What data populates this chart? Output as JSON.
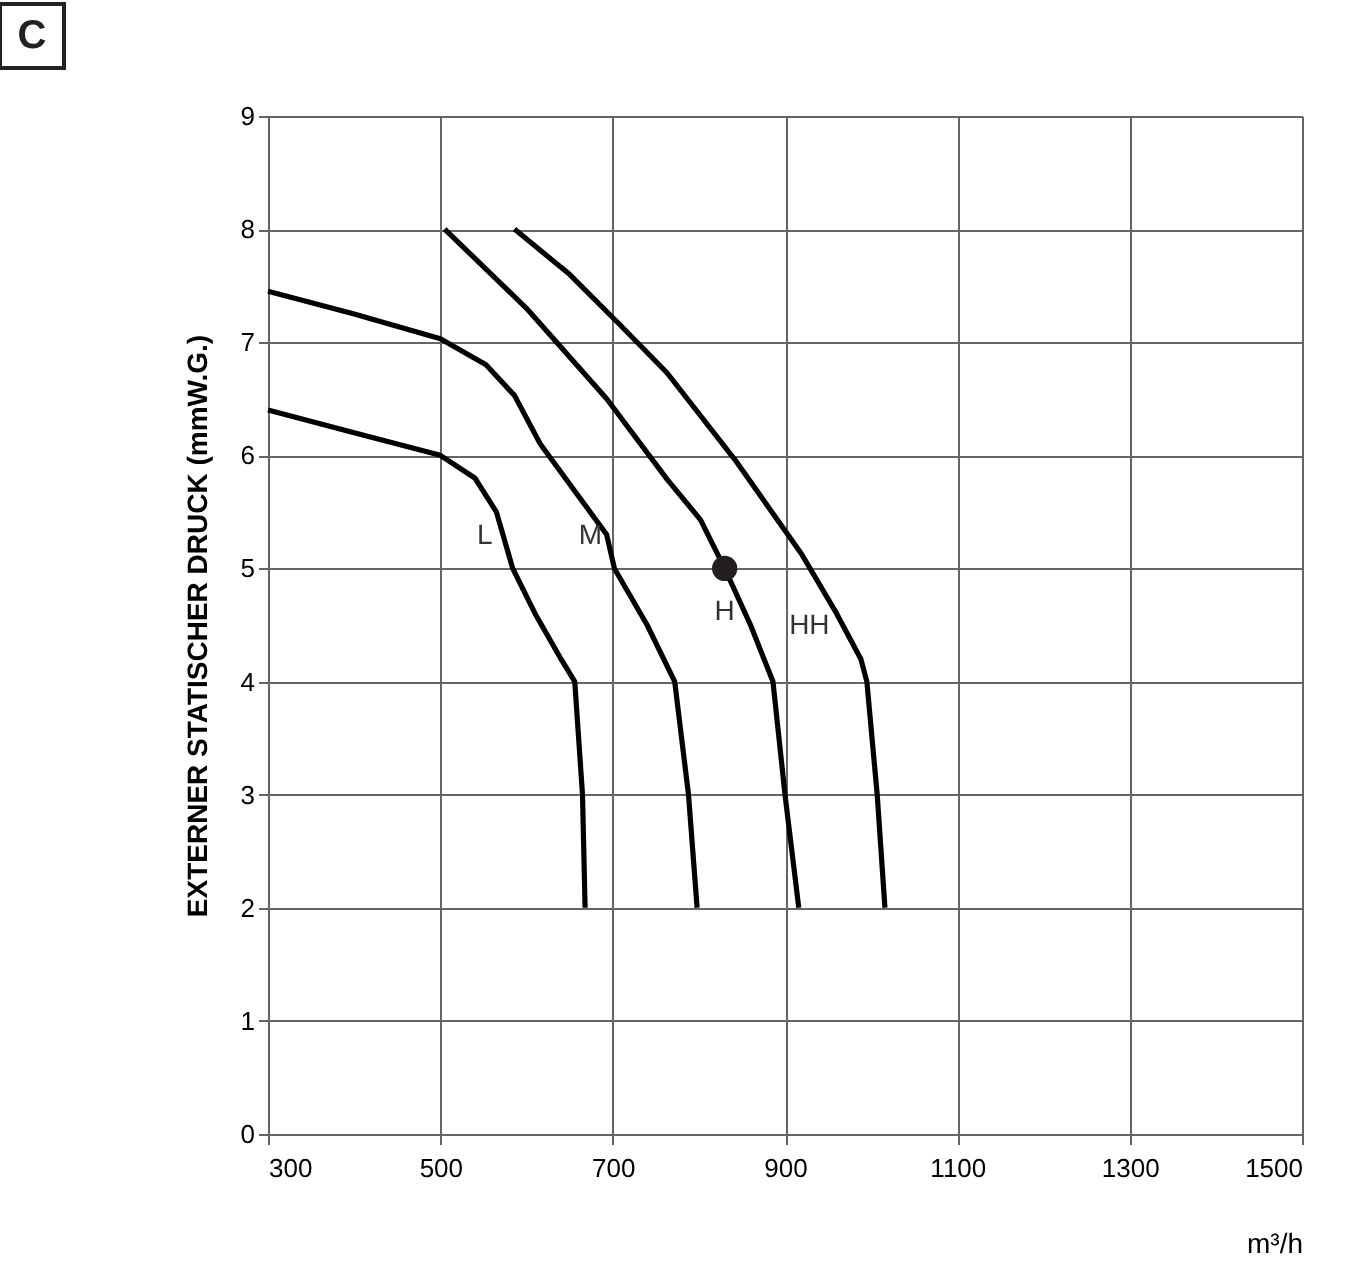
{
  "chart_data": {
    "type": "line",
    "xlabel": "m³/h",
    "ylabel": "EXTERNER STATISCHER DRUCK (mmW.G.)",
    "xlim": [
      300,
      1500
    ],
    "xticks": [
      300,
      500,
      700,
      900,
      1100,
      1300,
      1500
    ],
    "ylim": [
      0,
      9
    ],
    "yticks": [
      0,
      1,
      2,
      3,
      4,
      5,
      6,
      7,
      8,
      9
    ],
    "grid": true,
    "line_style": "solid",
    "marker": "none",
    "series": [
      {
        "name": "L",
        "color": "#000000",
        "x": [
          300,
          400,
          500,
          540,
          565,
          584,
          610,
          640,
          656,
          665,
          668
        ],
        "values": [
          6.4,
          6.2,
          6.0,
          5.8,
          5.5,
          5.0,
          4.6,
          4.2,
          4.0,
          3.0,
          2.0
        ]
      },
      {
        "name": "M",
        "color": "#000000",
        "x": [
          300,
          400,
          500,
          553,
          586,
          616,
          693,
          702,
          740,
          772,
          788,
          798
        ],
        "values": [
          7.45,
          7.25,
          7.03,
          6.8,
          6.53,
          6.1,
          5.3,
          5.0,
          4.5,
          4.0,
          3.0,
          2.0
        ]
      },
      {
        "name": "H",
        "color": "#000000",
        "x": [
          505,
          600,
          693,
          763,
          802,
          830,
          860,
          886,
          900,
          916
        ],
        "values": [
          8.0,
          7.3,
          6.5,
          5.79,
          5.43,
          5.0,
          4.5,
          4.0,
          3.0,
          2.0
        ]
      },
      {
        "name": "HH",
        "color": "#000000",
        "x": [
          586,
          650,
          709,
          763,
          842,
          919,
          960,
          988,
          995,
          1007,
          1016
        ],
        "values": [
          8.0,
          7.6,
          7.15,
          6.73,
          5.96,
          5.13,
          4.6,
          4.2,
          4.0,
          3.0,
          2.0
        ]
      },
      {
        "type": "scatter",
        "marker": "circle",
        "color": "#231f20",
        "x": [
          830
        ],
        "values": [
          5.0
        ]
      }
    ],
    "annotations": [
      "C"
    ]
  }
}
